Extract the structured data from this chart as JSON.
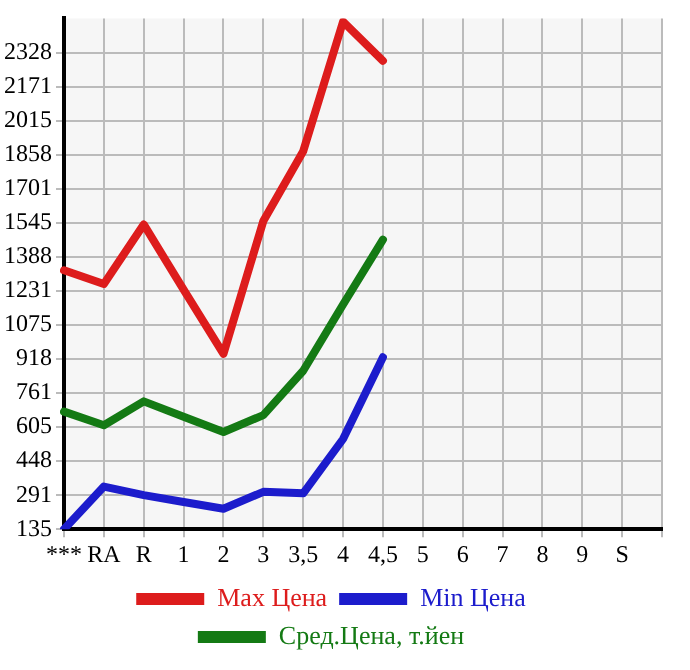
{
  "chart_data": {
    "type": "line",
    "categories": [
      "***",
      "RA",
      "R",
      "1",
      "2",
      "3",
      "3,5",
      "4",
      "4,5",
      "5",
      "6",
      "7",
      "8",
      "9",
      "S",
      null
    ],
    "series": [
      {
        "name": "Max Цена",
        "color": "#dd1c1c",
        "values": [
          1326,
          1263,
          1537,
          1237,
          942,
          1553,
          1874,
          2470,
          2290,
          null,
          null,
          null,
          null,
          null,
          null,
          null
        ]
      },
      {
        "name": "Min Цена",
        "color": "#1c1ccc",
        "values": [
          135,
          331,
          292,
          260,
          229,
          307,
          300,
          550,
          926,
          null,
          null,
          null,
          null,
          null,
          null,
          null
        ]
      },
      {
        "name": "Сред.Цена, т.йен",
        "color": "#147a14",
        "values": [
          676,
          613,
          723,
          652,
          582,
          660,
          864,
          1169,
          1467,
          null,
          null,
          null,
          null,
          null,
          null,
          null
        ]
      }
    ],
    "ylim": [
      135,
      2485
    ],
    "yticks": [
      135,
      291,
      448,
      605,
      761,
      918,
      1075,
      1231,
      1388,
      1545,
      1701,
      1858,
      2015,
      2171,
      2328
    ],
    "grid": true,
    "legend": "bottom",
    "marker": "none",
    "line_style": "solid"
  }
}
